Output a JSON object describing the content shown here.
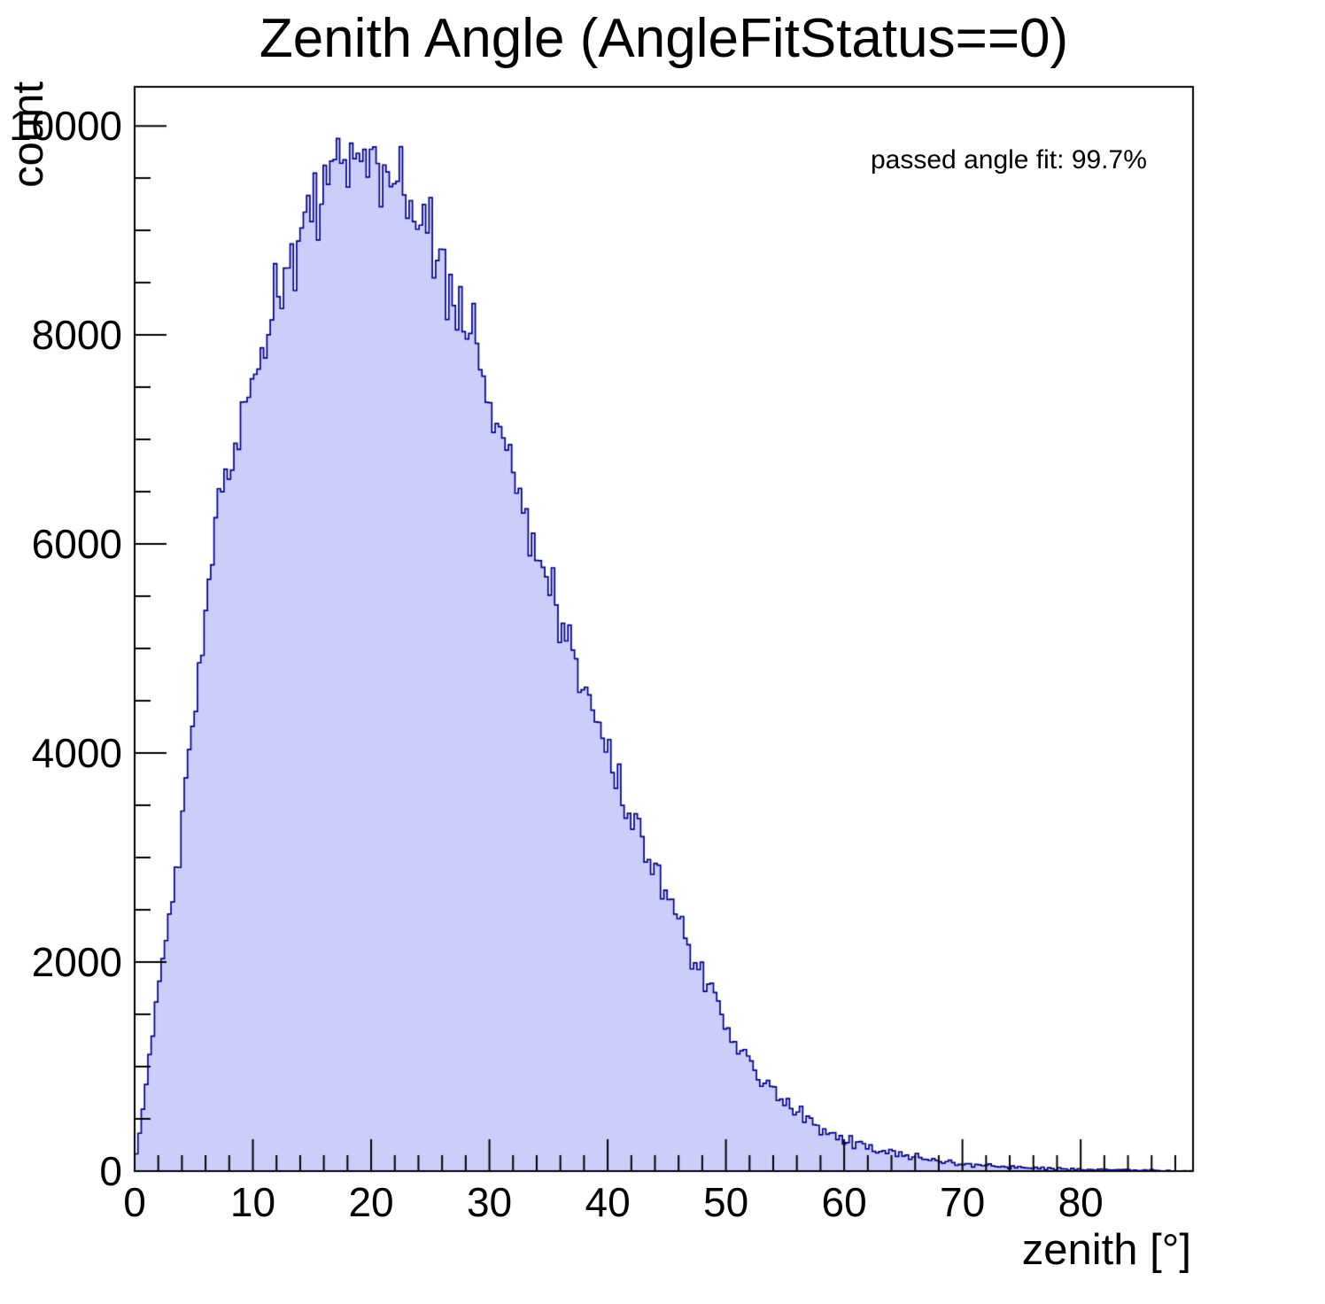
{
  "title": "Zenith Angle (AngleFitStatus==0)",
  "annotation": "passed angle fit: 99.7%",
  "chart_data": {
    "type": "bar",
    "subtype": "histogram-step-filled",
    "title": "Zenith Angle (AngleFitStatus==0)",
    "xlabel": "zenith [°]",
    "ylabel": "count",
    "annotation": "passed angle fit: 99.7%",
    "xlim": [
      0,
      89.5
    ],
    "ylim": [
      0,
      10374
    ],
    "x_major_ticks": [
      0,
      10,
      20,
      30,
      40,
      50,
      60,
      70,
      80
    ],
    "x_minor_step": 2,
    "y_major_ticks": [
      0,
      2000,
      4000,
      6000,
      8000,
      10000
    ],
    "y_minor_step": 500,
    "grid": false,
    "legend": null,
    "n_bins": 320,
    "seed": 42,
    "noise_sigma_scale": 1.7,
    "envelope": {
      "x_deg": [
        0,
        1,
        2,
        3,
        4,
        5,
        6,
        7,
        8,
        9,
        10,
        11,
        12,
        13,
        14,
        15,
        16,
        17,
        18,
        19,
        20,
        21,
        22,
        23,
        24,
        25,
        26,
        27,
        28,
        29,
        30,
        31,
        32,
        33,
        34,
        35,
        36,
        37,
        38,
        39,
        40,
        41,
        42,
        43,
        44,
        45,
        46,
        47,
        48,
        49,
        50,
        51,
        52,
        53,
        54,
        55,
        56,
        57,
        58,
        59,
        60,
        61,
        62,
        63,
        64,
        65,
        66,
        67,
        68,
        69,
        70,
        71,
        72,
        73,
        74,
        75,
        76,
        77,
        78,
        79,
        80,
        81,
        82,
        83,
        84,
        85,
        86,
        87,
        88,
        89
      ],
      "count": [
        30,
        900,
        1700,
        2500,
        3300,
        4300,
        5450,
        6150,
        6700,
        7200,
        7600,
        7900,
        8200,
        8600,
        8900,
        9200,
        9400,
        9600,
        9650,
        9700,
        9650,
        9500,
        9400,
        9250,
        9100,
        8850,
        8650,
        8400,
        8150,
        7800,
        7450,
        7050,
        6700,
        6300,
        5950,
        5600,
        5300,
        5000,
        4650,
        4300,
        4000,
        3700,
        3450,
        3150,
        2900,
        2650,
        2400,
        2150,
        1900,
        1650,
        1350,
        1200,
        1050,
        900,
        780,
        670,
        570,
        490,
        420,
        360,
        300,
        260,
        225,
        195,
        170,
        148,
        128,
        110,
        95,
        82,
        70,
        61,
        53,
        46,
        40,
        34,
        29,
        25,
        22,
        19,
        16,
        14,
        12,
        10,
        9,
        7,
        6,
        5,
        4,
        3
      ]
    },
    "peak": {
      "x_deg": 17.2,
      "count": 9880
    },
    "spikes": [
      [
        17.2,
        9880
      ],
      [
        22.62,
        9800
      ],
      [
        28.55,
        8300
      ]
    ],
    "colors": {
      "fill": "#cbcdfa",
      "line": "#00008f",
      "axis": "#000000",
      "background": "#ffffff",
      "text": "#000000"
    }
  }
}
